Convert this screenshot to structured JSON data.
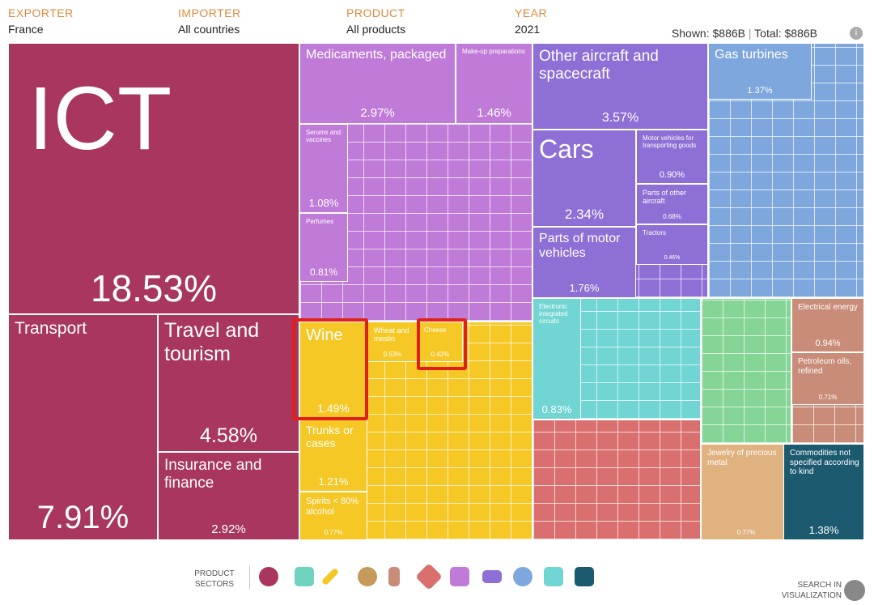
{
  "header": {
    "filters": [
      {
        "label": "EXPORTER",
        "value": "France"
      },
      {
        "label": "IMPORTER",
        "value": "All countries"
      },
      {
        "label": "PRODUCT",
        "value": "All products"
      },
      {
        "label": "YEAR",
        "value": "2021"
      }
    ],
    "shown_label": "Shown:",
    "shown_value": "$886B",
    "total_label": "Total:",
    "total_value": "$886B"
  },
  "treemap": {
    "tiles": [
      {
        "label": "ICT",
        "share": "18.53%"
      },
      {
        "label": "Transport",
        "share": "7.91%"
      },
      {
        "label": "Travel and tourism",
        "share": "4.58%"
      },
      {
        "label": "Insurance and finance",
        "share": "2.92%"
      },
      {
        "label": "Medicaments, packaged",
        "share": "2.97%"
      },
      {
        "label": "Make-up preparations",
        "share": "1.46%"
      },
      {
        "label": "Serums and vaccines",
        "share": "1.08%"
      },
      {
        "label": "Perfumes",
        "share": "0.81%"
      },
      {
        "label": "Other aircraft and spacecraft",
        "share": "3.57%"
      },
      {
        "label": "Cars",
        "share": "2.34%"
      },
      {
        "label": "Parts of motor vehicles",
        "share": "1.76%"
      },
      {
        "label": "Motor vehicles for transporting goods",
        "share": "0.90%"
      },
      {
        "label": "Parts of other aircraft",
        "share": "0.68%"
      },
      {
        "label": "Tractors",
        "share": "0.46%"
      },
      {
        "label": "Gas turbines",
        "share": "1.37%"
      },
      {
        "label": "Wine",
        "share": "1.49%"
      },
      {
        "label": "Wheat and meslin",
        "share": "0.53%"
      },
      {
        "label": "Cheese",
        "share": "0.42%"
      },
      {
        "label": "Trunks or cases",
        "share": "1.21%"
      },
      {
        "label": "Spirits < 80% alcohol",
        "share": "0.77%"
      },
      {
        "label": "Electronic integrated circuits",
        "share": "0.83%"
      },
      {
        "label": "Electrical energy",
        "share": "0.94%"
      },
      {
        "label": "Petroleum oils, refined",
        "share": "0.71%"
      },
      {
        "label": "Jewelry of precious metal",
        "share": "0.77%"
      },
      {
        "label": "Commodities not specified according to kind",
        "share": "1.38%"
      }
    ]
  },
  "footer": {
    "sectors_label": "PRODUCT SECTORS",
    "search_label": "SEARCH IN VISUALIZATION"
  }
}
